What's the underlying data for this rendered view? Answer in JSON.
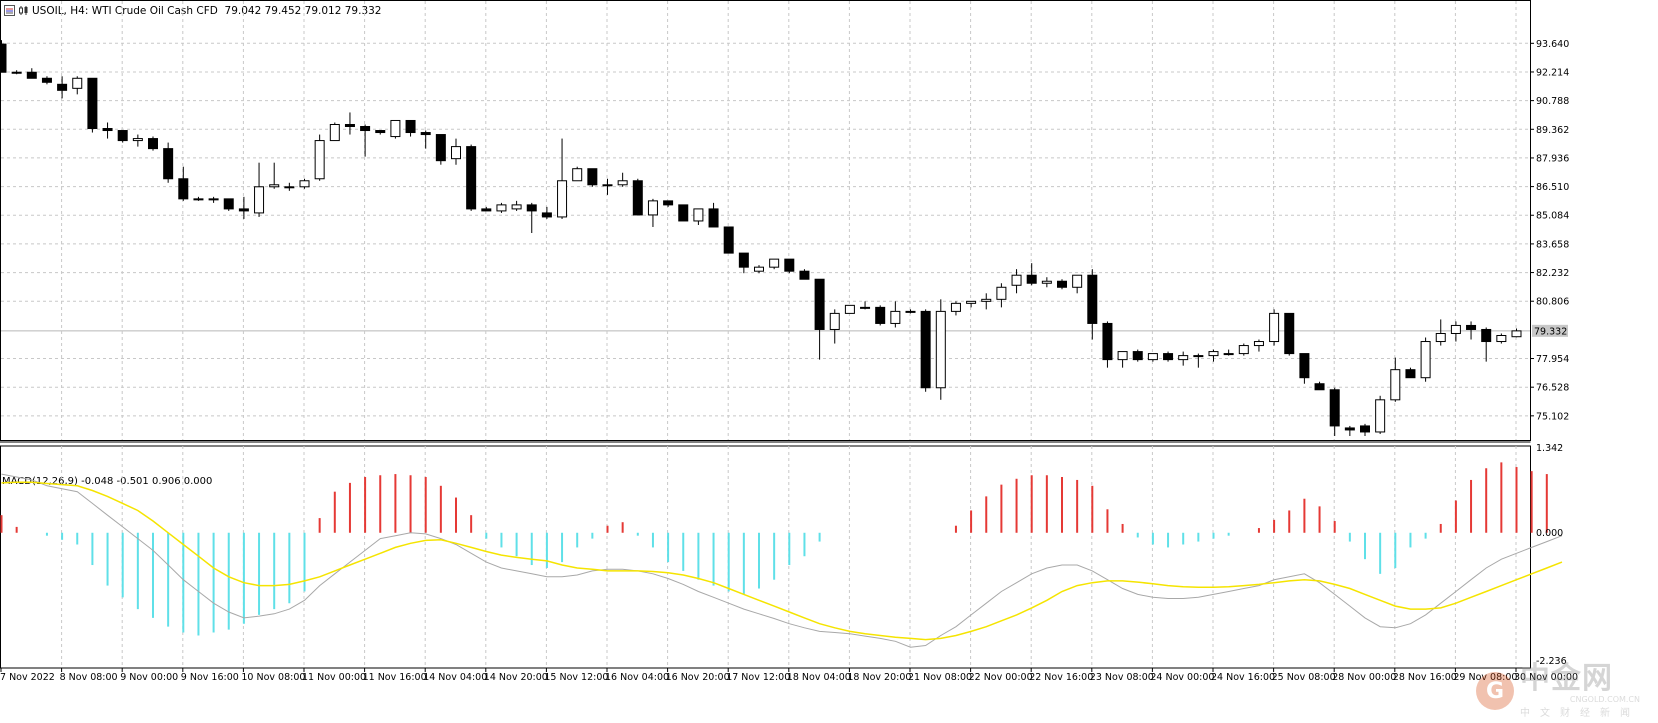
{
  "header": {
    "symbol": "USOIL, H4:",
    "description": "WTI Crude Oil Cash CFD",
    "ohlc": "79.042 79.452 79.012 79.332",
    "icon_name": "chart-window-icon"
  },
  "macd_header": "MACD(12,26,9) -0.048 -0.501 0.906 0.000",
  "current_price": "79.332",
  "price_axis": [
    "93.640",
    "92.214",
    "90.788",
    "89.362",
    "87.936",
    "86.510",
    "85.084",
    "83.658",
    "82.232",
    "80.806",
    "79.332",
    "77.954",
    "76.528",
    "75.102"
  ],
  "macd_axis": [
    "1.342",
    "0.000",
    "-2.236"
  ],
  "time_axis": [
    "7 Nov 2022",
    "8 Nov 08:00",
    "9 Nov 00:00",
    "9 Nov 16:00",
    "10 Nov 08:00",
    "11 Nov 00:00",
    "11 Nov 16:00",
    "14 Nov 04:00",
    "14 Nov 20:00",
    "15 Nov 12:00",
    "16 Nov 04:00",
    "16 Nov 20:00",
    "17 Nov 12:00",
    "18 Nov 04:00",
    "18 Nov 20:00",
    "21 Nov 08:00",
    "22 Nov 00:00",
    "22 Nov 16:00",
    "23 Nov 08:00",
    "24 Nov 00:00",
    "24 Nov 16:00",
    "25 Nov 08:00",
    "28 Nov 00:00",
    "28 Nov 16:00",
    "29 Nov 08:00",
    "30 Nov 00:00"
  ],
  "watermark": {
    "brand": "中金网",
    "site": "CNGOLD.COM.CN",
    "tagline": "中文财经新闻",
    "coin_glyph": "G"
  },
  "colors": {
    "bull_body": "#ffffff",
    "bear_body": "#000000",
    "hist_pos": "#e53935",
    "hist_neg": "#5fe0e8",
    "signal": "#f5e400",
    "macd_line": "#a8a8a8",
    "grid": "#c8c8c8"
  },
  "chart_data": {
    "type": "candlestick",
    "timeframe": "H4",
    "ylim": [
      73.9,
      94.8
    ],
    "candles": [
      [
        93.6,
        93.8,
        92.4,
        92.2
      ],
      [
        92.2,
        92.3,
        92.1,
        92.2
      ],
      [
        92.2,
        92.4,
        92.1,
        91.9
      ],
      [
        91.9,
        92.0,
        91.6,
        91.7
      ],
      [
        91.6,
        92.0,
        90.9,
        91.3
      ],
      [
        91.4,
        92.0,
        91.1,
        91.9
      ],
      [
        91.9,
        91.9,
        89.2,
        89.4
      ],
      [
        89.4,
        89.7,
        88.9,
        89.3
      ],
      [
        89.3,
        89.3,
        88.7,
        88.8
      ],
      [
        88.8,
        89.1,
        88.5,
        88.9
      ],
      [
        88.9,
        89.0,
        88.3,
        88.4
      ],
      [
        88.4,
        88.7,
        86.7,
        86.9
      ],
      [
        86.9,
        87.5,
        85.8,
        85.9
      ],
      [
        85.9,
        86.0,
        85.8,
        85.9
      ],
      [
        85.9,
        86.0,
        85.7,
        85.9
      ],
      [
        85.9,
        85.9,
        85.3,
        85.4
      ],
      [
        85.4,
        86.0,
        84.9,
        85.3
      ],
      [
        85.2,
        87.7,
        85.0,
        86.5
      ],
      [
        86.5,
        87.7,
        86.4,
        86.6
      ],
      [
        86.5,
        86.7,
        86.3,
        86.5
      ],
      [
        86.5,
        86.9,
        86.4,
        86.8
      ],
      [
        86.9,
        89.1,
        86.8,
        88.8
      ],
      [
        88.8,
        89.7,
        88.8,
        89.6
      ],
      [
        89.6,
        90.2,
        89.1,
        89.5
      ],
      [
        89.5,
        89.6,
        88.0,
        89.3
      ],
      [
        89.3,
        89.3,
        89.1,
        89.2
      ],
      [
        89.0,
        89.8,
        88.9,
        89.8
      ],
      [
        89.8,
        89.8,
        89.0,
        89.2
      ],
      [
        89.2,
        89.3,
        88.4,
        89.1
      ],
      [
        89.1,
        89.1,
        87.6,
        87.8
      ],
      [
        87.9,
        88.9,
        87.6,
        88.5
      ],
      [
        88.5,
        88.6,
        85.3,
        85.4
      ],
      [
        85.4,
        85.5,
        85.3,
        85.3
      ],
      [
        85.3,
        85.7,
        85.2,
        85.6
      ],
      [
        85.4,
        85.8,
        85.3,
        85.6
      ],
      [
        85.6,
        85.7,
        84.2,
        85.3
      ],
      [
        85.2,
        85.5,
        84.9,
        85.0
      ],
      [
        85.0,
        88.9,
        84.9,
        86.8
      ],
      [
        86.8,
        87.5,
        86.8,
        87.4
      ],
      [
        87.4,
        87.4,
        86.5,
        86.6
      ],
      [
        86.6,
        86.9,
        86.1,
        86.6
      ],
      [
        86.6,
        87.2,
        86.5,
        86.8
      ],
      [
        86.8,
        86.9,
        85.1,
        85.1
      ],
      [
        85.1,
        85.9,
        84.5,
        85.8
      ],
      [
        85.8,
        85.8,
        85.5,
        85.6
      ],
      [
        85.6,
        85.6,
        84.8,
        84.8
      ],
      [
        84.8,
        85.4,
        84.6,
        85.4
      ],
      [
        85.4,
        85.7,
        84.5,
        84.5
      ],
      [
        84.5,
        84.5,
        83.2,
        83.2
      ],
      [
        83.2,
        83.2,
        82.2,
        82.5
      ],
      [
        82.3,
        82.6,
        82.2,
        82.5
      ],
      [
        82.5,
        82.9,
        82.4,
        82.9
      ],
      [
        82.9,
        82.9,
        82.2,
        82.3
      ],
      [
        82.3,
        82.4,
        81.9,
        81.9
      ],
      [
        81.9,
        81.9,
        77.9,
        79.4
      ],
      [
        79.4,
        80.4,
        78.7,
        80.2
      ],
      [
        80.2,
        80.6,
        80.2,
        80.6
      ],
      [
        80.5,
        80.8,
        80.4,
        80.5
      ],
      [
        80.5,
        80.6,
        79.6,
        79.7
      ],
      [
        79.7,
        80.8,
        79.5,
        80.3
      ],
      [
        80.3,
        80.4,
        80.2,
        80.3
      ],
      [
        80.3,
        80.4,
        76.3,
        76.5
      ],
      [
        76.5,
        80.9,
        75.9,
        80.3
      ],
      [
        80.3,
        80.8,
        80.1,
        80.7
      ],
      [
        80.7,
        80.8,
        80.5,
        80.8
      ],
      [
        80.8,
        81.2,
        80.4,
        80.9
      ],
      [
        80.9,
        81.7,
        80.5,
        81.5
      ],
      [
        81.6,
        82.4,
        81.2,
        82.1
      ],
      [
        82.1,
        82.7,
        81.6,
        81.7
      ],
      [
        81.7,
        82.0,
        81.5,
        81.8
      ],
      [
        81.8,
        81.9,
        81.4,
        81.5
      ],
      [
        81.5,
        82.1,
        81.2,
        82.1
      ],
      [
        82.1,
        82.4,
        78.9,
        79.7
      ],
      [
        79.7,
        79.8,
        77.5,
        77.9
      ],
      [
        77.9,
        78.3,
        77.5,
        78.3
      ],
      [
        78.3,
        78.4,
        77.8,
        77.9
      ],
      [
        77.9,
        78.2,
        77.8,
        78.2
      ],
      [
        78.2,
        78.3,
        77.8,
        77.9
      ],
      [
        77.9,
        78.3,
        77.6,
        78.1
      ],
      [
        78.1,
        78.2,
        77.5,
        78.1
      ],
      [
        78.1,
        78.4,
        77.8,
        78.3
      ],
      [
        78.2,
        78.4,
        78.1,
        78.2
      ],
      [
        78.2,
        78.7,
        78.1,
        78.6
      ],
      [
        78.6,
        78.9,
        78.3,
        78.8
      ],
      [
        78.8,
        80.4,
        78.6,
        80.2
      ],
      [
        80.2,
        80.2,
        78.1,
        78.2
      ],
      [
        78.2,
        78.2,
        76.7,
        77.0
      ],
      [
        76.7,
        76.8,
        76.5,
        76.4
      ],
      [
        76.4,
        76.5,
        74.1,
        74.6
      ],
      [
        74.5,
        74.6,
        74.1,
        74.4
      ],
      [
        74.6,
        74.7,
        74.1,
        74.3
      ],
      [
        74.3,
        76.1,
        74.2,
        75.9
      ],
      [
        75.9,
        78.0,
        75.8,
        77.4
      ],
      [
        77.4,
        77.5,
        77.2,
        77.0
      ],
      [
        77.0,
        79.0,
        76.8,
        78.8
      ],
      [
        78.8,
        79.9,
        78.6,
        79.2
      ],
      [
        79.2,
        79.8,
        78.8,
        79.6
      ],
      [
        79.6,
        79.8,
        78.9,
        79.4
      ],
      [
        79.4,
        79.5,
        77.8,
        78.8
      ],
      [
        78.8,
        79.2,
        78.7,
        79.1
      ],
      [
        79.04,
        79.45,
        79.01,
        79.33
      ]
    ],
    "macd": {
      "params": "12,26,9",
      "ylim": [
        -2.236,
        1.342
      ],
      "histogram": [
        0.3,
        0.1,
        0.0,
        -0.05,
        -0.12,
        -0.2,
        -0.55,
        -0.9,
        -1.1,
        -1.3,
        -1.45,
        -1.6,
        -1.7,
        -1.75,
        -1.7,
        -1.65,
        -1.55,
        -1.4,
        -1.3,
        -1.2,
        -1.0,
        0.25,
        0.7,
        0.85,
        0.95,
        0.98,
        1.0,
        0.98,
        0.95,
        0.8,
        0.6,
        0.3,
        -0.1,
        -0.25,
        -0.4,
        -0.55,
        -0.6,
        -0.5,
        -0.25,
        -0.1,
        0.12,
        0.18,
        -0.05,
        -0.25,
        -0.5,
        -0.65,
        -0.8,
        -0.9,
        -1.0,
        -1.05,
        -0.95,
        -0.8,
        -0.55,
        -0.4,
        -0.15,
        0.0,
        0.0,
        0.0,
        0.0,
        0.0,
        0.0,
        0.0,
        0.0,
        0.12,
        0.38,
        0.62,
        0.82,
        0.92,
        0.98,
        0.98,
        0.95,
        0.9,
        0.8,
        0.4,
        0.15,
        -0.08,
        -0.2,
        -0.25,
        -0.2,
        -0.15,
        -0.1,
        -0.05,
        0.0,
        0.08,
        0.22,
        0.38,
        0.58,
        0.45,
        0.2,
        -0.15,
        -0.45,
        -0.7,
        -0.6,
        -0.25,
        -0.1,
        0.15,
        0.55,
        0.9,
        1.1,
        1.2,
        1.12,
        1.05,
        1.0
      ],
      "macd_line": [
        1.0,
        0.95,
        0.9,
        0.8,
        0.75,
        0.7,
        0.5,
        0.3,
        0.1,
        -0.1,
        -0.3,
        -0.55,
        -0.8,
        -1.0,
        -1.2,
        -1.35,
        -1.45,
        -1.42,
        -1.38,
        -1.3,
        -1.15,
        -0.9,
        -0.7,
        -0.5,
        -0.3,
        -0.1,
        -0.05,
        0.0,
        -0.02,
        -0.1,
        -0.2,
        -0.35,
        -0.5,
        -0.6,
        -0.65,
        -0.7,
        -0.75,
        -0.75,
        -0.72,
        -0.65,
        -0.62,
        -0.62,
        -0.65,
        -0.7,
        -0.78,
        -0.88,
        -1.0,
        -1.1,
        -1.2,
        -1.3,
        -1.38,
        -1.46,
        -1.55,
        -1.62,
        -1.68,
        -1.7,
        -1.72,
        -1.76,
        -1.8,
        -1.85,
        -1.95,
        -1.92,
        -1.75,
        -1.6,
        -1.4,
        -1.2,
        -1.0,
        -0.85,
        -0.7,
        -0.6,
        -0.55,
        -0.55,
        -0.65,
        -0.8,
        -0.95,
        -1.05,
        -1.1,
        -1.12,
        -1.12,
        -1.1,
        -1.05,
        -1.0,
        -0.95,
        -0.9,
        -0.8,
        -0.75,
        -0.7,
        -0.85,
        -1.05,
        -1.25,
        -1.45,
        -1.6,
        -1.62,
        -1.55,
        -1.4,
        -1.2,
        -1.0,
        -0.8,
        -0.6,
        -0.45,
        -0.35,
        -0.25,
        -0.15,
        -0.05
      ],
      "signal_line": [
        0.85,
        0.86,
        0.86,
        0.84,
        0.82,
        0.8,
        0.72,
        0.62,
        0.5,
        0.38,
        0.2,
        0.0,
        -0.2,
        -0.4,
        -0.6,
        -0.75,
        -0.85,
        -0.9,
        -0.9,
        -0.88,
        -0.82,
        -0.75,
        -0.65,
        -0.55,
        -0.45,
        -0.35,
        -0.25,
        -0.18,
        -0.13,
        -0.12,
        -0.18,
        -0.25,
        -0.32,
        -0.38,
        -0.42,
        -0.45,
        -0.48,
        -0.55,
        -0.6,
        -0.62,
        -0.65,
        -0.65,
        -0.65,
        -0.66,
        -0.68,
        -0.72,
        -0.78,
        -0.85,
        -0.95,
        -1.05,
        -1.15,
        -1.25,
        -1.35,
        -1.45,
        -1.55,
        -1.62,
        -1.68,
        -1.72,
        -1.75,
        -1.78,
        -1.8,
        -1.82,
        -1.8,
        -1.75,
        -1.68,
        -1.6,
        -1.5,
        -1.4,
        -1.28,
        -1.15,
        -1.0,
        -0.9,
        -0.85,
        -0.82,
        -0.82,
        -0.84,
        -0.87,
        -0.9,
        -0.92,
        -0.93,
        -0.93,
        -0.92,
        -0.9,
        -0.88,
        -0.85,
        -0.82,
        -0.8,
        -0.82,
        -0.88,
        -0.95,
        -1.05,
        -1.15,
        -1.25,
        -1.3,
        -1.3,
        -1.28,
        -1.2,
        -1.1,
        -1.0,
        -0.9,
        -0.8,
        -0.7,
        -0.6,
        -0.5
      ]
    }
  }
}
